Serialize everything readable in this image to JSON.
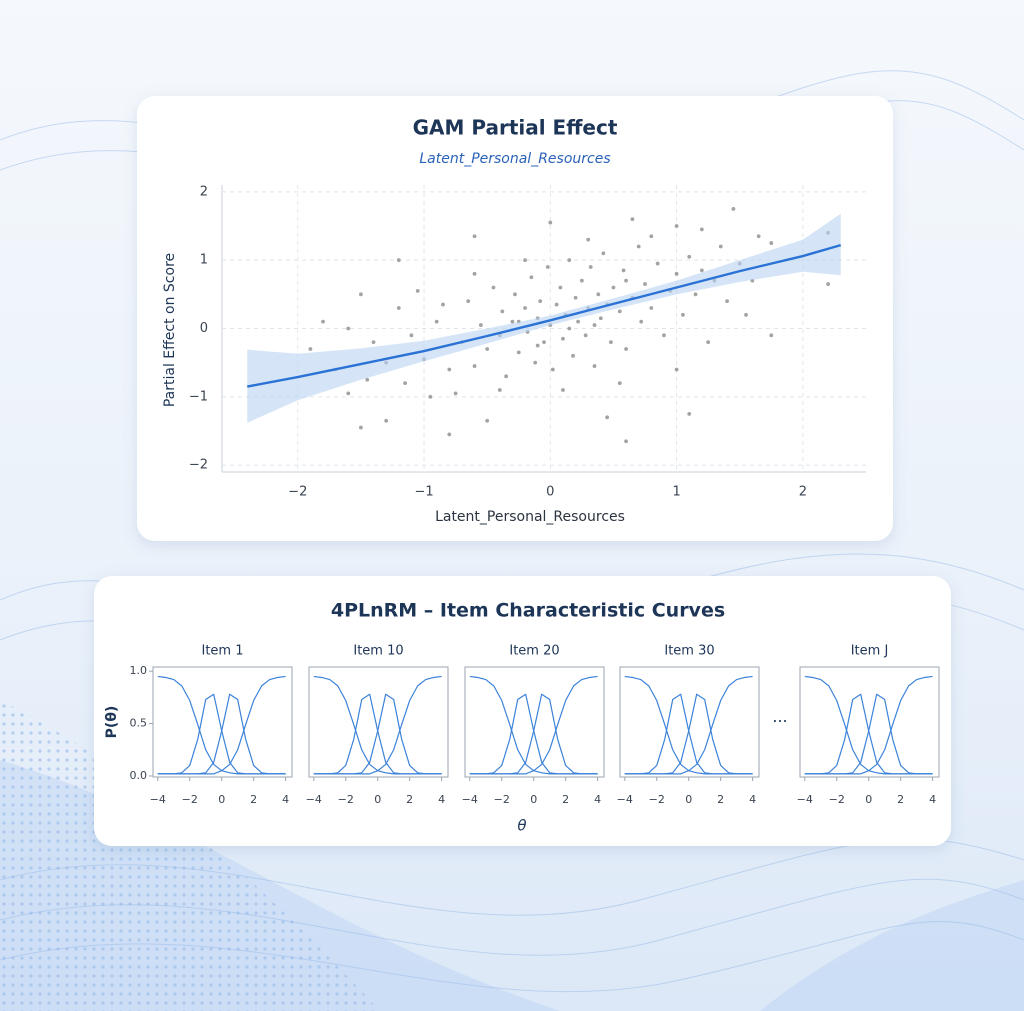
{
  "chart_data": [
    {
      "type": "scatter",
      "title": "GAM Partial Effect",
      "subtitle": "Latent_Personal_Resources",
      "xlabel": "Latent_Personal_Resources",
      "ylabel": "Partial Effect on Score",
      "xlim": [
        -2.6,
        2.5
      ],
      "ylim": [
        -2.1,
        2.1
      ],
      "xticks": [
        {
          "value": -2,
          "label": "−2"
        },
        {
          "value": -1,
          "label": "−1"
        },
        0,
        1,
        2
      ],
      "yticks": [
        {
          "value": -2,
          "label": "−2"
        },
        {
          "value": -1,
          "label": "−1"
        },
        0,
        1,
        2
      ],
      "grid": true,
      "series": [
        {
          "type": "scatter",
          "color": "#8c8c8c",
          "x": [
            -1.8,
            -1.5,
            -1.2,
            -1.5,
            -0.8,
            -0.6,
            0,
            0.6,
            0.65,
            1.0,
            1.45,
            2.2,
            2.2,
            1.75,
            1.75,
            -1.6,
            -1.3,
            -0.5,
            0.45,
            1.1,
            -1.9,
            -1.0,
            -0.9,
            -0.8,
            -0.7,
            -0.65,
            -0.6,
            -0.55,
            -0.5,
            -0.45,
            -0.4,
            -0.38,
            -0.35,
            -0.3,
            -0.28,
            -0.25,
            -0.2,
            -0.18,
            -0.15,
            -0.12,
            -0.1,
            -0.08,
            -0.05,
            -0.02,
            0.0,
            0.02,
            0.05,
            0.08,
            0.1,
            0.12,
            0.15,
            0.18,
            0.2,
            0.22,
            0.25,
            0.28,
            0.3,
            0.32,
            0.35,
            0.38,
            0.4,
            0.42,
            0.45,
            0.48,
            0.5,
            0.55,
            0.58,
            0.6,
            0.65,
            0.7,
            0.72,
            0.75,
            0.8,
            0.85,
            0.9,
            0.95,
            1.0,
            1.05,
            1.1,
            1.15,
            1.2,
            1.25,
            1.3,
            1.35,
            1.4,
            1.5,
            1.55,
            1.6,
            1.65,
            -1.1,
            -1.15,
            -1.2,
            -1.3,
            -1.4,
            -1.45,
            -1.6,
            -1.7,
            -1.05,
            -0.95,
            -0.85,
            -0.75,
            -0.6,
            -0.4,
            -0.2,
            0.1,
            0.3,
            0.55,
            0.8,
            1.0,
            1.2,
            0.15,
            -0.25,
            0.35,
            0.6,
            -0.1
          ],
          "values": [
            0.1,
            0.5,
            1.0,
            -1.45,
            -1.55,
            1.35,
            1.55,
            -1.65,
            1.6,
            1.5,
            1.75,
            0.65,
            1.4,
            -0.1,
            1.25,
            -0.95,
            -1.35,
            -1.35,
            -1.3,
            -1.25,
            -0.3,
            -0.45,
            0.1,
            -0.6,
            -0.2,
            0.4,
            -0.55,
            0.05,
            -0.3,
            0.6,
            -0.1,
            0.25,
            -0.7,
            0.1,
            0.5,
            -0.35,
            0.3,
            -0.05,
            0.75,
            -0.5,
            0.15,
            0.4,
            -0.2,
            0.9,
            0.05,
            -0.6,
            0.35,
            0.6,
            -0.15,
            0.2,
            1.0,
            -0.4,
            0.45,
            0.1,
            0.7,
            -0.1,
            0.3,
            0.9,
            -0.55,
            0.5,
            0.15,
            1.1,
            0.35,
            -0.2,
            0.6,
            0.25,
            0.85,
            -0.3,
            0.45,
            1.2,
            0.1,
            0.65,
            0.3,
            0.95,
            -0.1,
            0.55,
            0.8,
            0.2,
            1.05,
            0.5,
            0.85,
            -0.2,
            0.7,
            1.2,
            0.4,
            0.95,
            0.2,
            0.7,
            1.35,
            -0.1,
            -0.8,
            0.3,
            -0.5,
            -0.2,
            -0.75,
            0.0,
            -0.6,
            0.55,
            -1.0,
            0.35,
            -0.95,
            0.8,
            -0.9,
            1.0,
            -0.9,
            1.3,
            -0.8,
            1.35,
            -0.6,
            1.45,
            0.0,
            0.1,
            0.05,
            0.7,
            -0.25
          ]
        },
        {
          "type": "line",
          "color": "#2a72d6",
          "band_color": "#b9d3f2",
          "x": [
            -2.4,
            -2,
            -1.5,
            -1,
            -0.5,
            0,
            0.5,
            1,
            1.5,
            2,
            2.3
          ],
          "values": [
            -0.85,
            -0.71,
            -0.52,
            -0.33,
            -0.11,
            0.12,
            0.36,
            0.6,
            0.84,
            1.06,
            1.22
          ],
          "lower": [
            -1.38,
            -1.05,
            -0.75,
            -0.48,
            -0.22,
            0.05,
            0.28,
            0.5,
            0.68,
            0.83,
            0.78
          ],
          "upper": [
            -0.31,
            -0.37,
            -0.29,
            -0.18,
            0.0,
            0.19,
            0.44,
            0.7,
            1.0,
            1.3,
            1.68
          ]
        }
      ]
    },
    {
      "type": "line",
      "title": "Item 1",
      "xlim": [
        -4.3,
        4.4
      ],
      "ylim": [
        -0.01,
        1.04
      ],
      "xticks": [
        {
          "value": -4,
          "label": "−4"
        },
        {
          "value": -2,
          "label": "−2"
        },
        0,
        2,
        4
      ],
      "yticks": [
        {
          "value": 0,
          "label": "0.0"
        },
        0.5,
        {
          "value": 1,
          "label": "1.0"
        }
      ],
      "x": [
        -4,
        -3.5,
        -3,
        -2.5,
        -2,
        -1.5,
        -1,
        -0.5,
        0,
        0.5,
        1,
        1.5,
        2,
        2.5,
        3,
        3.5,
        4
      ],
      "series": [
        {
          "color": "#3b82d9",
          "values": [
            0.95,
            0.94,
            0.92,
            0.86,
            0.72,
            0.49,
            0.25,
            0.11,
            0.05,
            0.03,
            0.02,
            0.02,
            0.02,
            0.02,
            0.02,
            0.02,
            0.02
          ]
        },
        {
          "color": "#3b82d9",
          "values": [
            0.02,
            0.02,
            0.02,
            0.03,
            0.1,
            0.35,
            0.73,
            0.78,
            0.43,
            0.13,
            0.03,
            0.02,
            0.02,
            0.02,
            0.02,
            0.02,
            0.02
          ]
        },
        {
          "color": "#3b82d9",
          "values": [
            0.02,
            0.02,
            0.02,
            0.02,
            0.02,
            0.02,
            0.03,
            0.13,
            0.43,
            0.78,
            0.73,
            0.35,
            0.1,
            0.03,
            0.02,
            0.02,
            0.02
          ]
        },
        {
          "color": "#3b82d9",
          "values": [
            0.02,
            0.02,
            0.02,
            0.02,
            0.02,
            0.02,
            0.02,
            0.02,
            0.05,
            0.11,
            0.25,
            0.49,
            0.72,
            0.86,
            0.92,
            0.94,
            0.95
          ]
        }
      ]
    },
    {
      "type": "line",
      "title": "Item 10",
      "xlim": [
        -4.3,
        4.4
      ],
      "ylim": [
        -0.01,
        1.04
      ],
      "xticks": [
        {
          "value": -4,
          "label": "−4"
        },
        {
          "value": -2,
          "label": "−2"
        },
        0,
        2,
        4
      ],
      "x": [
        -4,
        -3.5,
        -3,
        -2.5,
        -2,
        -1.5,
        -1,
        -0.5,
        0,
        0.5,
        1,
        1.5,
        2,
        2.5,
        3,
        3.5,
        4
      ],
      "series": [
        {
          "color": "#3b82d9",
          "values": [
            0.95,
            0.94,
            0.92,
            0.86,
            0.72,
            0.49,
            0.25,
            0.11,
            0.05,
            0.03,
            0.02,
            0.02,
            0.02,
            0.02,
            0.02,
            0.02,
            0.02
          ]
        },
        {
          "color": "#3b82d9",
          "values": [
            0.02,
            0.02,
            0.02,
            0.03,
            0.1,
            0.35,
            0.73,
            0.78,
            0.43,
            0.13,
            0.03,
            0.02,
            0.02,
            0.02,
            0.02,
            0.02,
            0.02
          ]
        },
        {
          "color": "#3b82d9",
          "values": [
            0.02,
            0.02,
            0.02,
            0.02,
            0.02,
            0.02,
            0.03,
            0.13,
            0.43,
            0.78,
            0.73,
            0.35,
            0.1,
            0.03,
            0.02,
            0.02,
            0.02
          ]
        },
        {
          "color": "#3b82d9",
          "values": [
            0.02,
            0.02,
            0.02,
            0.02,
            0.02,
            0.02,
            0.02,
            0.02,
            0.05,
            0.11,
            0.25,
            0.49,
            0.72,
            0.86,
            0.92,
            0.94,
            0.95
          ]
        }
      ]
    },
    {
      "type": "line",
      "title": "Item 20",
      "xlim": [
        -4.3,
        4.4
      ],
      "ylim": [
        -0.01,
        1.04
      ],
      "xticks": [
        {
          "value": -4,
          "label": "−4"
        },
        {
          "value": -2,
          "label": "−2"
        },
        0,
        2,
        4
      ],
      "x": [
        -4,
        -3.5,
        -3,
        -2.5,
        -2,
        -1.5,
        -1,
        -0.5,
        0,
        0.5,
        1,
        1.5,
        2,
        2.5,
        3,
        3.5,
        4
      ],
      "series": [
        {
          "color": "#3b82d9",
          "values": [
            0.95,
            0.94,
            0.92,
            0.86,
            0.72,
            0.49,
            0.25,
            0.11,
            0.05,
            0.03,
            0.02,
            0.02,
            0.02,
            0.02,
            0.02,
            0.02,
            0.02
          ]
        },
        {
          "color": "#3b82d9",
          "values": [
            0.02,
            0.02,
            0.02,
            0.03,
            0.1,
            0.35,
            0.73,
            0.78,
            0.43,
            0.13,
            0.03,
            0.02,
            0.02,
            0.02,
            0.02,
            0.02,
            0.02
          ]
        },
        {
          "color": "#3b82d9",
          "values": [
            0.02,
            0.02,
            0.02,
            0.02,
            0.02,
            0.02,
            0.03,
            0.13,
            0.43,
            0.78,
            0.73,
            0.35,
            0.1,
            0.03,
            0.02,
            0.02,
            0.02
          ]
        },
        {
          "color": "#3b82d9",
          "values": [
            0.02,
            0.02,
            0.02,
            0.02,
            0.02,
            0.02,
            0.02,
            0.02,
            0.05,
            0.11,
            0.25,
            0.49,
            0.72,
            0.86,
            0.92,
            0.94,
            0.95
          ]
        }
      ]
    },
    {
      "type": "line",
      "title": "Item 30",
      "xlim": [
        -4.3,
        4.4
      ],
      "ylim": [
        -0.01,
        1.04
      ],
      "xticks": [
        {
          "value": -4,
          "label": "−4"
        },
        {
          "value": -2,
          "label": "−2"
        },
        0,
        2,
        4
      ],
      "x": [
        -4,
        -3.5,
        -3,
        -2.5,
        -2,
        -1.5,
        -1,
        -0.5,
        0,
        0.5,
        1,
        1.5,
        2,
        2.5,
        3,
        3.5,
        4
      ],
      "series": [
        {
          "color": "#3b82d9",
          "values": [
            0.95,
            0.94,
            0.92,
            0.86,
            0.72,
            0.49,
            0.25,
            0.11,
            0.05,
            0.03,
            0.02,
            0.02,
            0.02,
            0.02,
            0.02,
            0.02,
            0.02
          ]
        },
        {
          "color": "#3b82d9",
          "values": [
            0.02,
            0.02,
            0.02,
            0.03,
            0.1,
            0.35,
            0.73,
            0.78,
            0.43,
            0.13,
            0.03,
            0.02,
            0.02,
            0.02,
            0.02,
            0.02,
            0.02
          ]
        },
        {
          "color": "#3b82d9",
          "values": [
            0.02,
            0.02,
            0.02,
            0.02,
            0.02,
            0.02,
            0.03,
            0.13,
            0.43,
            0.78,
            0.73,
            0.35,
            0.1,
            0.03,
            0.02,
            0.02,
            0.02
          ]
        },
        {
          "color": "#3b82d9",
          "values": [
            0.02,
            0.02,
            0.02,
            0.02,
            0.02,
            0.02,
            0.02,
            0.02,
            0.05,
            0.11,
            0.25,
            0.49,
            0.72,
            0.86,
            0.92,
            0.94,
            0.95
          ]
        }
      ]
    },
    {
      "type": "line",
      "title": "Item J",
      "xlim": [
        -4.3,
        4.4
      ],
      "ylim": [
        -0.01,
        1.04
      ],
      "xticks": [
        {
          "value": -4,
          "label": "−4"
        },
        {
          "value": -2,
          "label": "−2"
        },
        0,
        2,
        4
      ],
      "x": [
        -4,
        -3.5,
        -3,
        -2.5,
        -2,
        -1.5,
        -1,
        -0.5,
        0,
        0.5,
        1,
        1.5,
        2,
        2.5,
        3,
        3.5,
        4
      ],
      "series": [
        {
          "color": "#3b82d9",
          "values": [
            0.95,
            0.94,
            0.92,
            0.86,
            0.72,
            0.49,
            0.25,
            0.11,
            0.05,
            0.03,
            0.02,
            0.02,
            0.02,
            0.02,
            0.02,
            0.02,
            0.02
          ]
        },
        {
          "color": "#3b82d9",
          "values": [
            0.02,
            0.02,
            0.02,
            0.03,
            0.1,
            0.35,
            0.73,
            0.78,
            0.43,
            0.13,
            0.03,
            0.02,
            0.02,
            0.02,
            0.02,
            0.02,
            0.02
          ]
        },
        {
          "color": "#3b82d9",
          "values": [
            0.02,
            0.02,
            0.02,
            0.02,
            0.02,
            0.02,
            0.03,
            0.13,
            0.43,
            0.78,
            0.73,
            0.35,
            0.1,
            0.03,
            0.02,
            0.02,
            0.02
          ]
        },
        {
          "color": "#3b82d9",
          "values": [
            0.02,
            0.02,
            0.02,
            0.02,
            0.02,
            0.02,
            0.02,
            0.02,
            0.05,
            0.11,
            0.25,
            0.49,
            0.72,
            0.86,
            0.92,
            0.94,
            0.95
          ]
        }
      ]
    }
  ],
  "icc_panel": {
    "title": "4PLnRM – Item Characteristic Curves",
    "ylabel": "P(θ)",
    "xlabel": "θ",
    "ellipsis": "···"
  }
}
